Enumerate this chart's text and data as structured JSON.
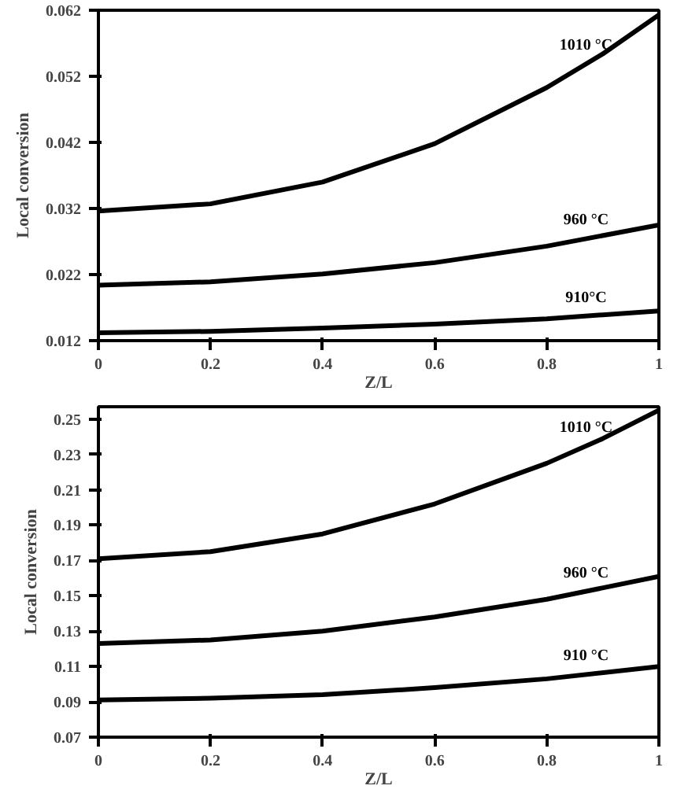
{
  "chart_data": [
    {
      "type": "line",
      "ylabel": "Local conversion",
      "xlabel": "Z/L",
      "xlim": [
        0,
        1
      ],
      "xticks": [
        0,
        0.2,
        0.4,
        0.6,
        0.8,
        1
      ],
      "ylim": [
        0.012,
        0.062
      ],
      "yticks": [
        0.012,
        0.022,
        0.032,
        0.042,
        0.052,
        0.062
      ],
      "marker": "none",
      "line_style": "solid",
      "series": [
        {
          "name": "1010 °C",
          "color": "#000000",
          "x": [
            0,
            0.2,
            0.4,
            0.6,
            0.8,
            0.9,
            1
          ],
          "values": [
            0.0316,
            0.0327,
            0.036,
            0.0418,
            0.0503,
            0.0554,
            0.0613
          ]
        },
        {
          "name": "960 °C",
          "color": "#000000",
          "x": [
            0,
            0.2,
            0.4,
            0.6,
            0.8,
            1
          ],
          "values": [
            0.0204,
            0.0209,
            0.0221,
            0.0238,
            0.0263,
            0.0295
          ]
        },
        {
          "name": "910°C",
          "color": "#000000",
          "x": [
            0,
            0.2,
            0.4,
            0.6,
            0.8,
            1
          ],
          "values": [
            0.0132,
            0.0134,
            0.0139,
            0.0145,
            0.0153,
            0.0165
          ]
        }
      ]
    },
    {
      "type": "line",
      "ylabel": "Local conversion",
      "xlabel": "Z/L",
      "xlim": [
        0,
        1
      ],
      "xticks": [
        0,
        0.2,
        0.4,
        0.6,
        0.8,
        1
      ],
      "ylim": [
        0.07,
        0.257
      ],
      "yticks": [
        0.07,
        0.09,
        0.11,
        0.13,
        0.15,
        0.17,
        0.19,
        0.21,
        0.23,
        0.25
      ],
      "marker": "none",
      "line_style": "solid",
      "series": [
        {
          "name": "1010 °C",
          "color": "#000000",
          "x": [
            0,
            0.2,
            0.4,
            0.6,
            0.8,
            0.9,
            1
          ],
          "values": [
            0.171,
            0.175,
            0.185,
            0.202,
            0.225,
            0.239,
            0.255
          ]
        },
        {
          "name": "960 °C",
          "color": "#000000",
          "x": [
            0,
            0.2,
            0.4,
            0.6,
            0.8,
            1
          ],
          "values": [
            0.123,
            0.125,
            0.13,
            0.138,
            0.148,
            0.161
          ]
        },
        {
          "name": "910 °C",
          "color": "#000000",
          "x": [
            0,
            0.2,
            0.4,
            0.6,
            0.8,
            1
          ],
          "values": [
            0.091,
            0.092,
            0.094,
            0.098,
            0.103,
            0.11
          ]
        }
      ]
    }
  ]
}
